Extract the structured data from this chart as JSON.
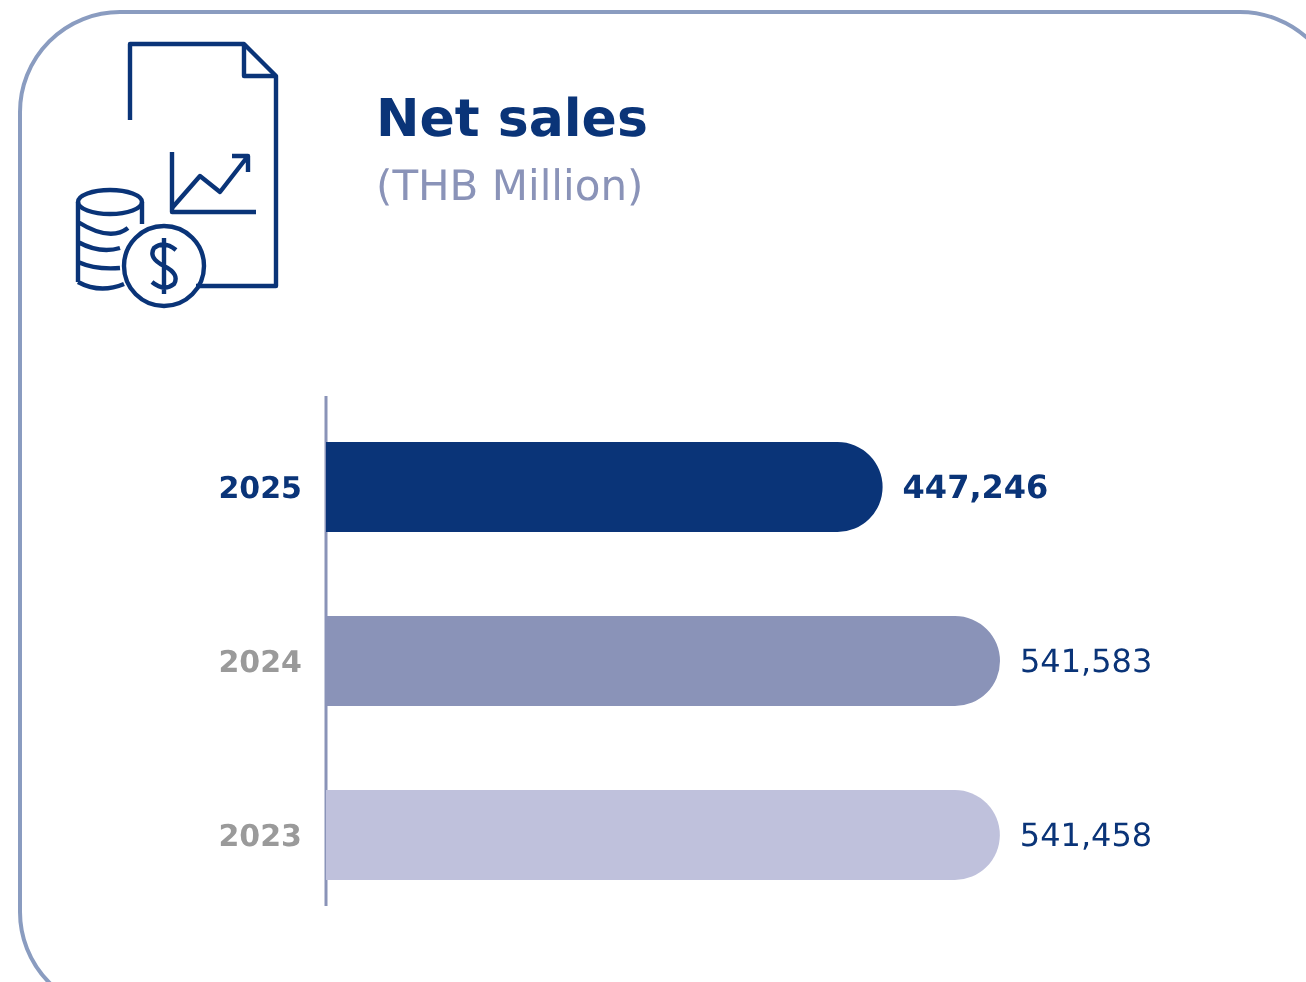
{
  "chart_data": {
    "type": "bar",
    "orientation": "horizontal",
    "title": "Net sales",
    "subtitle": "(THB Million)",
    "categories": [
      "2025",
      "2024",
      "2023"
    ],
    "values": [
      447246,
      541583,
      541458
    ],
    "colors": [
      "#0a3478",
      "#8a93b8",
      "#bfc1dc"
    ],
    "value_labels": [
      "447,246",
      "541,583",
      "541,458"
    ]
  }
}
